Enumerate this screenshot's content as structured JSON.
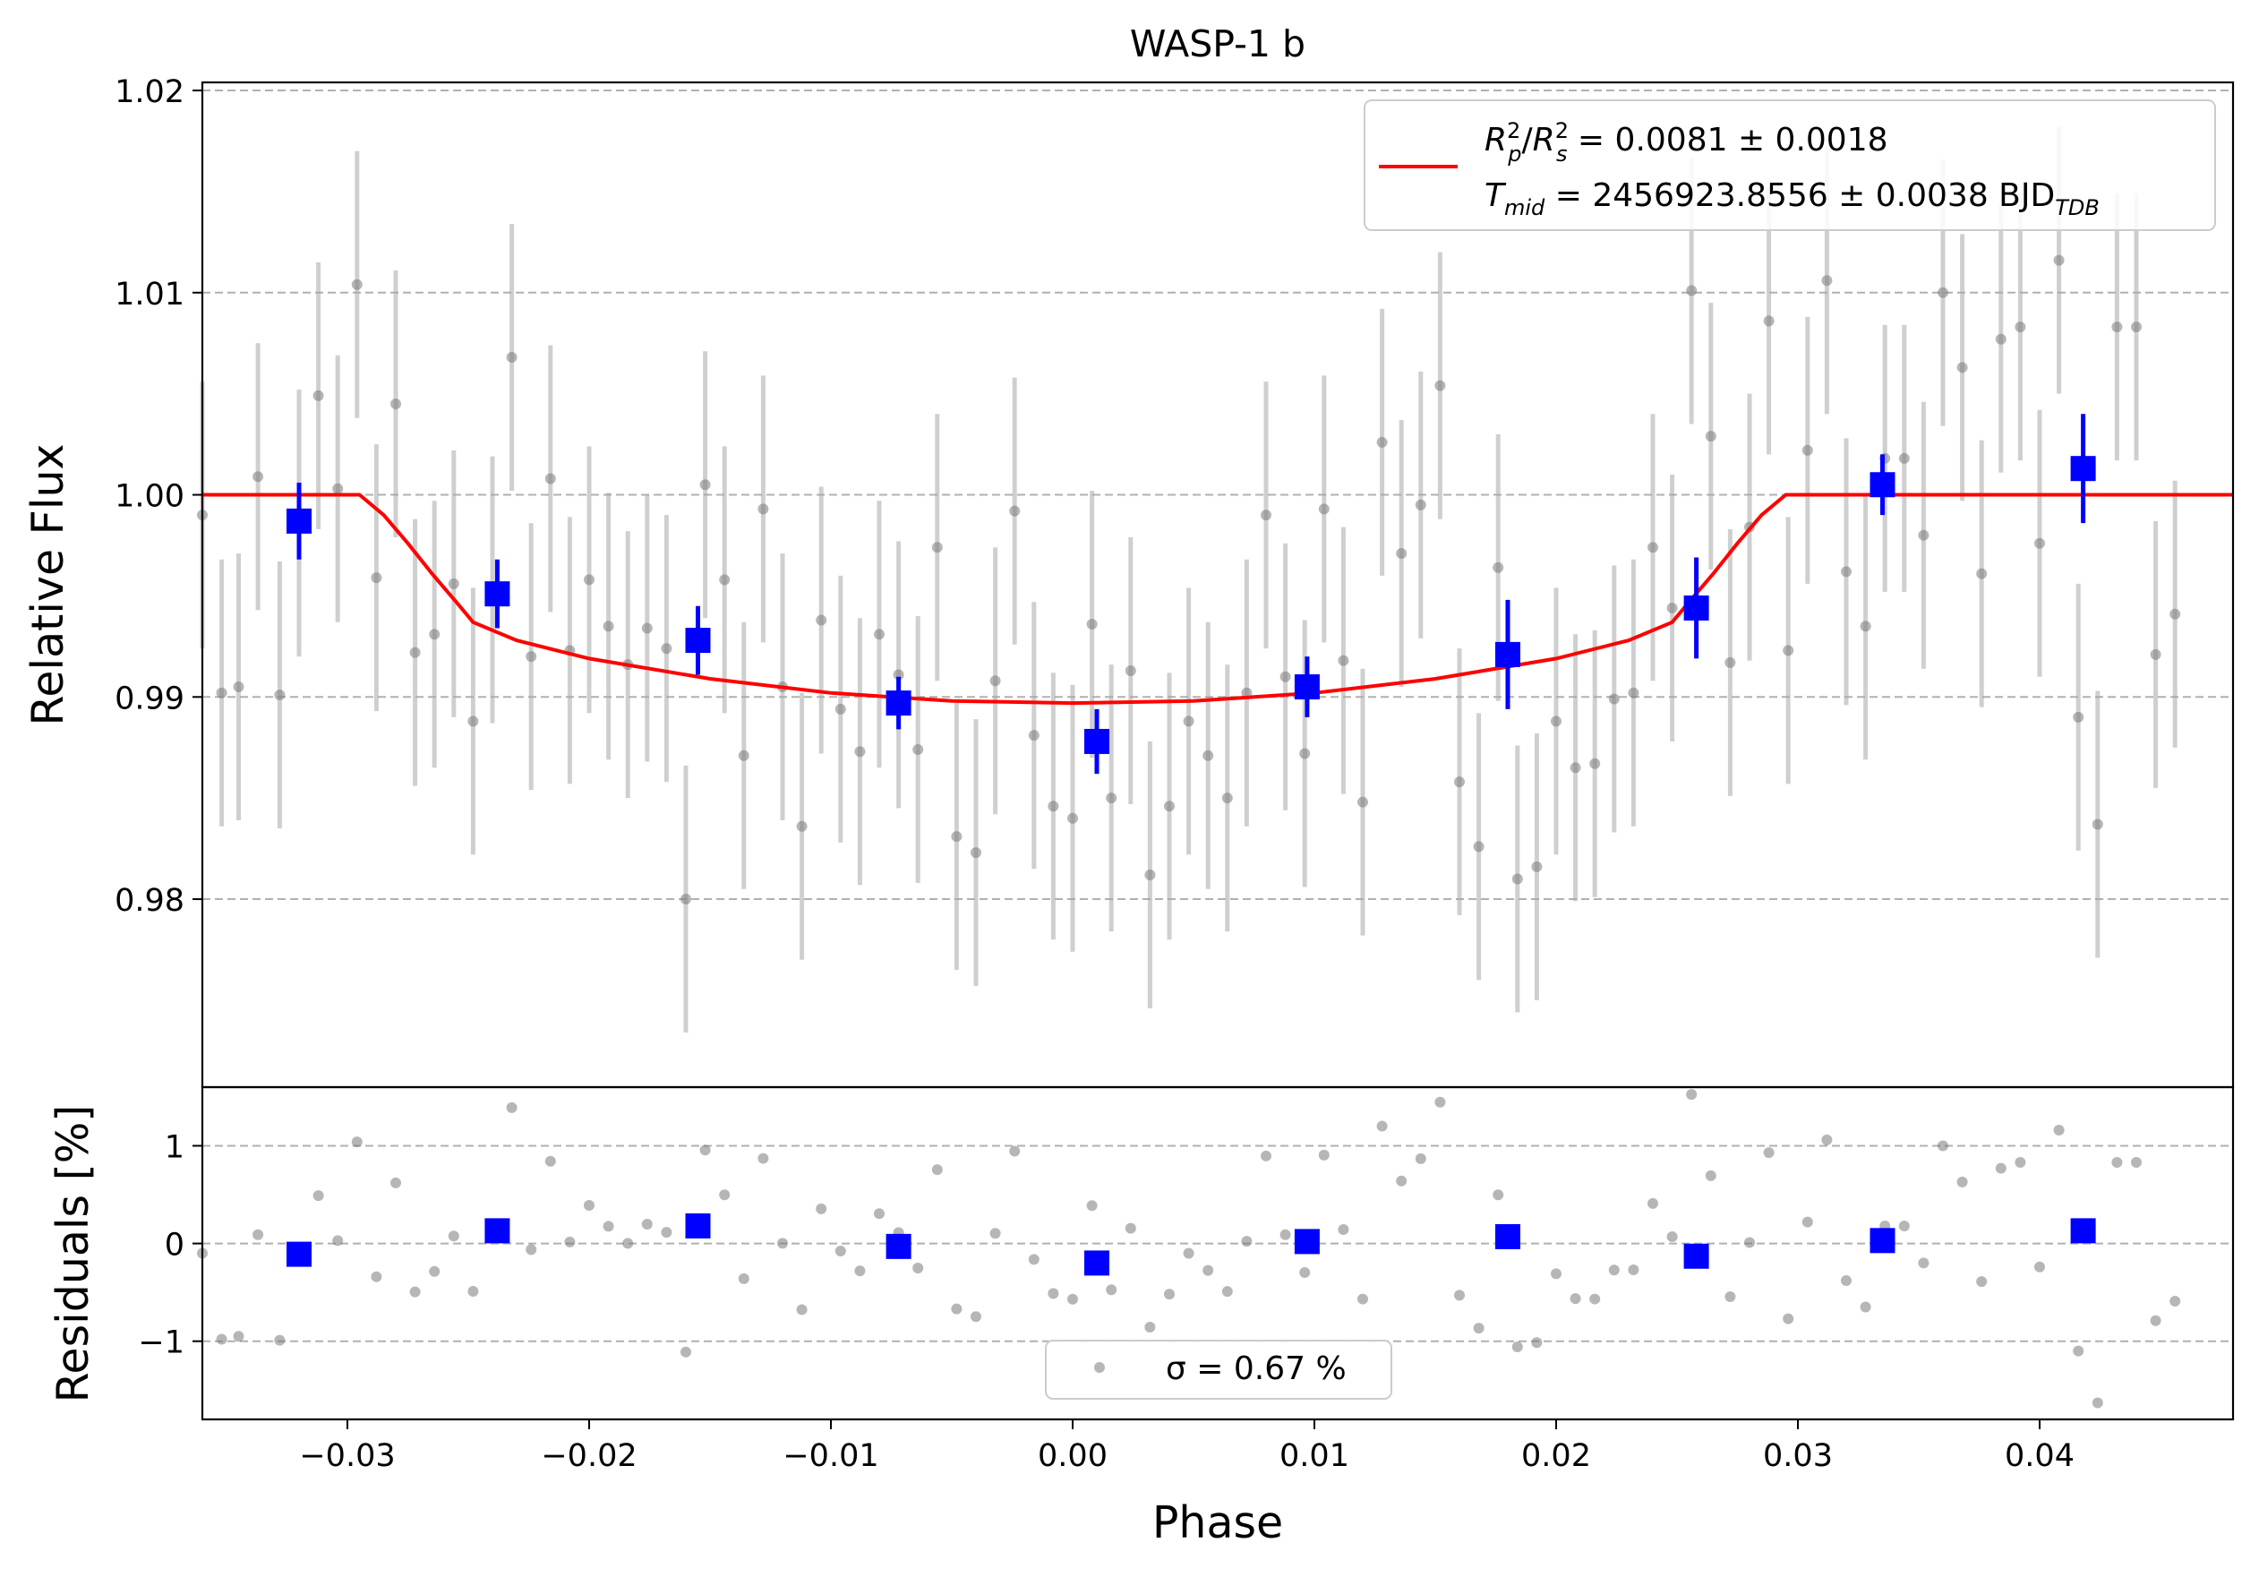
{
  "chart_data": [
    {
      "panel": "main",
      "type": "scatter",
      "title": "WASP-1 b",
      "xlabel": "",
      "ylabel": "Relative Flux",
      "xlim": [
        -0.036,
        0.048
      ],
      "ylim": [
        0.9707,
        1.0204
      ],
      "yticks": [
        0.98,
        0.99,
        1.0,
        1.01,
        1.02
      ],
      "ytick_labels": [
        "0.98",
        "0.99",
        "1.00",
        "1.01",
        "1.02"
      ],
      "grid": "horizontal dashed",
      "legend": {
        "placement": "top-right",
        "line1": "R²ₚ/R²ₛ = 0.0081 ± 0.0018",
        "line2": "Tmid = 2456923.8556 ± 0.0038 BJDTDB"
      },
      "series": [
        {
          "role": "raw",
          "color": "#7a7a7a",
          "err": 0.0066,
          "points": [
            [
              -0.036,
              0.999
            ],
            [
              -0.0352,
              0.9902
            ],
            [
              -0.0345,
              0.9905
            ],
            [
              -0.0337,
              1.0009
            ],
            [
              -0.0328,
              0.9901
            ],
            [
              -0.032,
              0.9986
            ],
            [
              -0.0312,
              1.0049
            ],
            [
              -0.0304,
              1.0003
            ],
            [
              -0.0296,
              1.0104
            ],
            [
              -0.0288,
              0.9959
            ],
            [
              -0.028,
              1.0045
            ],
            [
              -0.0272,
              0.9922
            ],
            [
              -0.0264,
              0.9931
            ],
            [
              -0.0256,
              0.9956
            ],
            [
              -0.0248,
              0.9888
            ],
            [
              -0.024,
              0.9953
            ],
            [
              -0.0232,
              1.0068
            ],
            [
              -0.0224,
              0.992
            ],
            [
              -0.0216,
              1.0008
            ],
            [
              -0.0208,
              0.9923
            ],
            [
              -0.02,
              0.9958
            ],
            [
              -0.0192,
              0.9935
            ],
            [
              -0.0184,
              0.9916
            ],
            [
              -0.0176,
              0.9934
            ],
            [
              -0.0168,
              0.9924
            ],
            [
              -0.016,
              0.98
            ],
            [
              -0.0152,
              1.0005
            ],
            [
              -0.0144,
              0.9958
            ],
            [
              -0.0136,
              0.9871
            ],
            [
              -0.0128,
              0.9993
            ],
            [
              -0.012,
              0.9905
            ],
            [
              -0.0112,
              0.9836
            ],
            [
              -0.0104,
              0.9938
            ],
            [
              -0.0096,
              0.9894
            ],
            [
              -0.0088,
              0.9873
            ],
            [
              -0.008,
              0.9931
            ],
            [
              -0.0072,
              0.9911
            ],
            [
              -0.0064,
              0.9874
            ],
            [
              -0.0056,
              0.9974
            ],
            [
              -0.0048,
              0.9831
            ],
            [
              -0.004,
              0.9823
            ],
            [
              -0.0032,
              0.9908
            ],
            [
              -0.0024,
              0.9992
            ],
            [
              -0.0016,
              0.9881
            ],
            [
              -0.0008,
              0.9846
            ],
            [
              0.0,
              0.984
            ],
            [
              0.0008,
              0.9936
            ],
            [
              0.0016,
              0.985
            ],
            [
              0.0024,
              0.9913
            ],
            [
              0.0032,
              0.9812
            ],
            [
              0.004,
              0.9846
            ],
            [
              0.0048,
              0.9888
            ],
            [
              0.0056,
              0.9871
            ],
            [
              0.0064,
              0.985
            ],
            [
              0.0072,
              0.9902
            ],
            [
              0.008,
              0.999
            ],
            [
              0.0088,
              0.991
            ],
            [
              0.0096,
              0.9872
            ],
            [
              0.0104,
              0.9993
            ],
            [
              0.0112,
              0.9918
            ],
            [
              0.012,
              0.9848
            ],
            [
              0.0128,
              1.0026
            ],
            [
              0.0136,
              0.9971
            ],
            [
              0.0144,
              0.9995
            ],
            [
              0.0152,
              1.0054
            ],
            [
              0.016,
              0.9858
            ],
            [
              0.0168,
              0.9826
            ],
            [
              0.0176,
              0.9964
            ],
            [
              0.0184,
              0.981
            ],
            [
              0.0192,
              0.9816
            ],
            [
              0.02,
              0.9888
            ],
            [
              0.0208,
              0.9865
            ],
            [
              0.0216,
              0.9867
            ],
            [
              0.0224,
              0.9899
            ],
            [
              0.0232,
              0.9902
            ],
            [
              0.024,
              0.9974
            ],
            [
              0.0248,
              0.9944
            ],
            [
              0.0256,
              1.0101
            ],
            [
              0.0264,
              1.0029
            ],
            [
              0.0272,
              0.9917
            ],
            [
              0.028,
              0.9984
            ],
            [
              0.0288,
              1.0086
            ],
            [
              0.0296,
              0.9923
            ],
            [
              0.0304,
              1.0022
            ],
            [
              0.0312,
              1.0106
            ],
            [
              0.032,
              0.9962
            ],
            [
              0.0328,
              0.9935
            ],
            [
              0.0336,
              1.0018
            ],
            [
              0.0344,
              1.0018
            ],
            [
              0.0352,
              0.998
            ],
            [
              0.036,
              1.01
            ],
            [
              0.0368,
              1.0063
            ],
            [
              0.0376,
              0.9961
            ],
            [
              0.0384,
              1.0077
            ],
            [
              0.0392,
              1.0083
            ],
            [
              0.04,
              0.9976
            ],
            [
              0.0408,
              1.0116
            ],
            [
              0.0416,
              0.989
            ],
            [
              0.0424,
              0.9837
            ],
            [
              0.0432,
              1.0083
            ],
            [
              0.044,
              1.0083
            ],
            [
              0.0448,
              0.9921
            ],
            [
              0.0456,
              0.9941
            ]
          ]
        },
        {
          "role": "binned",
          "color": "#0000ff",
          "points": [
            [
              -0.032,
              0.9987,
              0.0019
            ],
            [
              -0.0238,
              0.9951,
              0.0017
            ],
            [
              -0.0155,
              0.9928,
              0.0017
            ],
            [
              -0.0072,
              0.9897,
              0.0013
            ],
            [
              0.001,
              0.9878,
              0.0016
            ],
            [
              0.0097,
              0.9905,
              0.0015
            ],
            [
              0.018,
              0.9921,
              0.0027
            ],
            [
              0.0258,
              0.9944,
              0.0025
            ],
            [
              0.0335,
              1.0005,
              0.0015
            ],
            [
              0.0418,
              1.0013,
              0.0027
            ]
          ]
        },
        {
          "role": "model",
          "color": "#ff0000",
          "x": [
            -0.036,
            -0.0295,
            -0.0285,
            -0.0275,
            -0.0265,
            -0.0255,
            -0.0248,
            -0.023,
            -0.02,
            -0.015,
            -0.01,
            -0.005,
            0.0,
            0.005,
            0.01,
            0.015,
            0.02,
            0.023,
            0.0248,
            0.0255,
            0.0265,
            0.0275,
            0.0285,
            0.0295,
            0.048
          ],
          "y": [
            1.0,
            1.0,
            0.999,
            0.9976,
            0.9961,
            0.9947,
            0.9937,
            0.9928,
            0.9919,
            0.9909,
            0.9902,
            0.9898,
            0.9897,
            0.9898,
            0.9902,
            0.9909,
            0.9919,
            0.9928,
            0.9937,
            0.9947,
            0.9961,
            0.9976,
            0.999,
            1.0,
            1.0
          ]
        }
      ]
    },
    {
      "panel": "residuals",
      "type": "scatter",
      "xlabel": "Phase",
      "ylabel": "Residuals [%]",
      "xlim": [
        -0.036,
        0.048
      ],
      "ylim": [
        -1.8,
        1.6
      ],
      "xticks": [
        -0.03,
        -0.02,
        -0.01,
        0.0,
        0.01,
        0.02,
        0.03,
        0.04
      ],
      "xtick_labels": [
        "−0.03",
        "−0.02",
        "−0.01",
        "0.00",
        "0.01",
        "0.02",
        "0.03",
        "0.04"
      ],
      "yticks": [
        -1,
        0,
        1
      ],
      "ytick_labels": [
        "−1",
        "0",
        "1"
      ],
      "grid": "horizontal dashed",
      "legend": {
        "placement": "bottom-center",
        "label": "σ = 0.67 %"
      },
      "series": [
        {
          "role": "residuals-raw",
          "color": "#7a7a7a"
        },
        {
          "role": "residuals-binned",
          "color": "#0000ff",
          "points": [
            [
              -0.032,
              -0.11
            ],
            [
              -0.0238,
              0.13
            ],
            [
              -0.0155,
              0.18
            ],
            [
              -0.0072,
              -0.03
            ],
            [
              0.001,
              -0.2
            ],
            [
              0.0097,
              0.02
            ],
            [
              0.018,
              0.07
            ],
            [
              0.0258,
              -0.13
            ],
            [
              0.0335,
              0.03
            ],
            [
              0.0418,
              0.13
            ]
          ]
        }
      ]
    }
  ]
}
